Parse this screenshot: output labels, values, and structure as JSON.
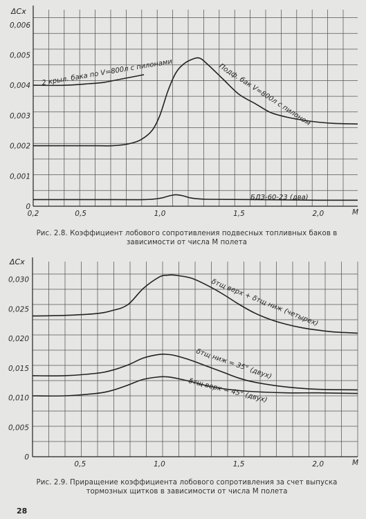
{
  "chart_data": [
    {
      "type": "line",
      "title": "",
      "ylabel": "ΔCx",
      "xlabel": "M",
      "xlim": [
        0.2,
        2.25
      ],
      "ylim": [
        0,
        0.0065
      ],
      "grid": true,
      "x_ticks": [
        "0,2",
        "0,5",
        "1,0",
        "1,5",
        "2,0"
      ],
      "x_tick_values": [
        0.2,
        0.5,
        1.0,
        1.5,
        2.0
      ],
      "x_unit": "M",
      "y_ticks": [
        "0,006",
        "0,005",
        "0,004",
        "0,003",
        "0,002",
        "0,001",
        "0"
      ],
      "y_tick_values": [
        0.006,
        0.005,
        0.004,
        0.003,
        0.002,
        0.001,
        0
      ],
      "series": [
        {
          "name": "2 крыл. бака по V=800л с пилонами",
          "x": [
            0.2,
            0.4,
            0.55,
            0.65,
            0.75,
            0.85,
            0.9
          ],
          "y": [
            0.004,
            0.004,
            0.00405,
            0.0041,
            0.0042,
            0.0043,
            0.00435
          ]
        },
        {
          "name": "Подф. бак V=800л с пилоном",
          "x": [
            0.2,
            0.4,
            0.6,
            0.7,
            0.8,
            0.88,
            0.95,
            1.0,
            1.05,
            1.1,
            1.15,
            1.2,
            1.25,
            1.3,
            1.4,
            1.5,
            1.6,
            1.7,
            1.8,
            1.9,
            2.0,
            2.1,
            2.25
          ],
          "y": [
            0.002,
            0.002,
            0.002,
            0.002,
            0.00206,
            0.0022,
            0.0025,
            0.003,
            0.0038,
            0.0044,
            0.0047,
            0.00485,
            0.0049,
            0.0047,
            0.0042,
            0.0037,
            0.0034,
            0.0031,
            0.00295,
            0.00285,
            0.00278,
            0.00274,
            0.00272
          ]
        },
        {
          "name": "БДЗ-60-23 (два)",
          "x": [
            0.2,
            0.6,
            0.9,
            1.0,
            1.05,
            1.1,
            1.15,
            1.2,
            1.3,
            1.6,
            2.0,
            2.25
          ],
          "y": [
            0.00022,
            0.00022,
            0.00022,
            0.00026,
            0.00033,
            0.00038,
            0.00034,
            0.00027,
            0.00023,
            0.00022,
            0.0002,
            0.0002
          ]
        }
      ]
    },
    {
      "type": "line",
      "title": "",
      "ylabel": "ΔCx",
      "xlabel": "M",
      "xlim": [
        0.2,
        2.25
      ],
      "ylim": [
        0,
        0.033
      ],
      "grid": true,
      "x_ticks": [
        "0,5",
        "1,0",
        "1,5",
        "2,0"
      ],
      "x_tick_values": [
        0.5,
        1.0,
        1.5,
        2.0
      ],
      "x_unit": "M",
      "y_ticks": [
        "0,030",
        "0,025",
        "0,020",
        "0,015",
        "0,010",
        "0,005",
        "0"
      ],
      "y_tick_values": [
        0.03,
        0.025,
        0.02,
        0.015,
        0.01,
        0.005,
        0
      ],
      "series": [
        {
          "name": "δтщ верх + δтщ ниж (четырех)",
          "x": [
            0.2,
            0.4,
            0.6,
            0.7,
            0.8,
            0.9,
            1.0,
            1.05,
            1.1,
            1.2,
            1.3,
            1.4,
            1.5,
            1.6,
            1.7,
            1.8,
            1.9,
            2.0,
            2.1,
            2.25
          ],
          "y": [
            0.0238,
            0.0239,
            0.0242,
            0.0247,
            0.0257,
            0.0285,
            0.0304,
            0.0307,
            0.0307,
            0.0302,
            0.029,
            0.0275,
            0.0258,
            0.0243,
            0.0232,
            0.0224,
            0.0218,
            0.0214,
            0.0211,
            0.0209
          ]
        },
        {
          "name": "δтщ ниж = 35° (двух)",
          "x": [
            0.2,
            0.4,
            0.6,
            0.7,
            0.8,
            0.9,
            1.0,
            1.05,
            1.1,
            1.2,
            1.3,
            1.4,
            1.5,
            1.6,
            1.8,
            2.0,
            2.25
          ],
          "y": [
            0.0137,
            0.0137,
            0.0141,
            0.0146,
            0.0155,
            0.0167,
            0.0173,
            0.0173,
            0.0171,
            0.0163,
            0.0153,
            0.0143,
            0.0133,
            0.0126,
            0.0118,
            0.0114,
            0.0113
          ]
        },
        {
          "name": "δтщ верх = 45° (двух)",
          "x": [
            0.2,
            0.4,
            0.6,
            0.7,
            0.8,
            0.9,
            1.0,
            1.05,
            1.1,
            1.2,
            1.3,
            1.4,
            1.5,
            1.6,
            1.8,
            2.0,
            2.25
          ],
          "y": [
            0.0103,
            0.0103,
            0.0107,
            0.0112,
            0.0121,
            0.0131,
            0.0135,
            0.0135,
            0.0133,
            0.0127,
            0.012,
            0.0115,
            0.0112,
            0.011,
            0.0108,
            0.0108,
            0.0107
          ]
        }
      ]
    }
  ],
  "captions": {
    "fig1": "Рис. 2.8. Коэффициент лобового сопротивления подвесных топливных баков в зависимости от числа М полета",
    "fig2": "Рис. 2.9. Приращение коэффициента лобового сопротивления за счет выпуска тормозных щитков в зависимости от числа М полета"
  },
  "page_number": "28"
}
